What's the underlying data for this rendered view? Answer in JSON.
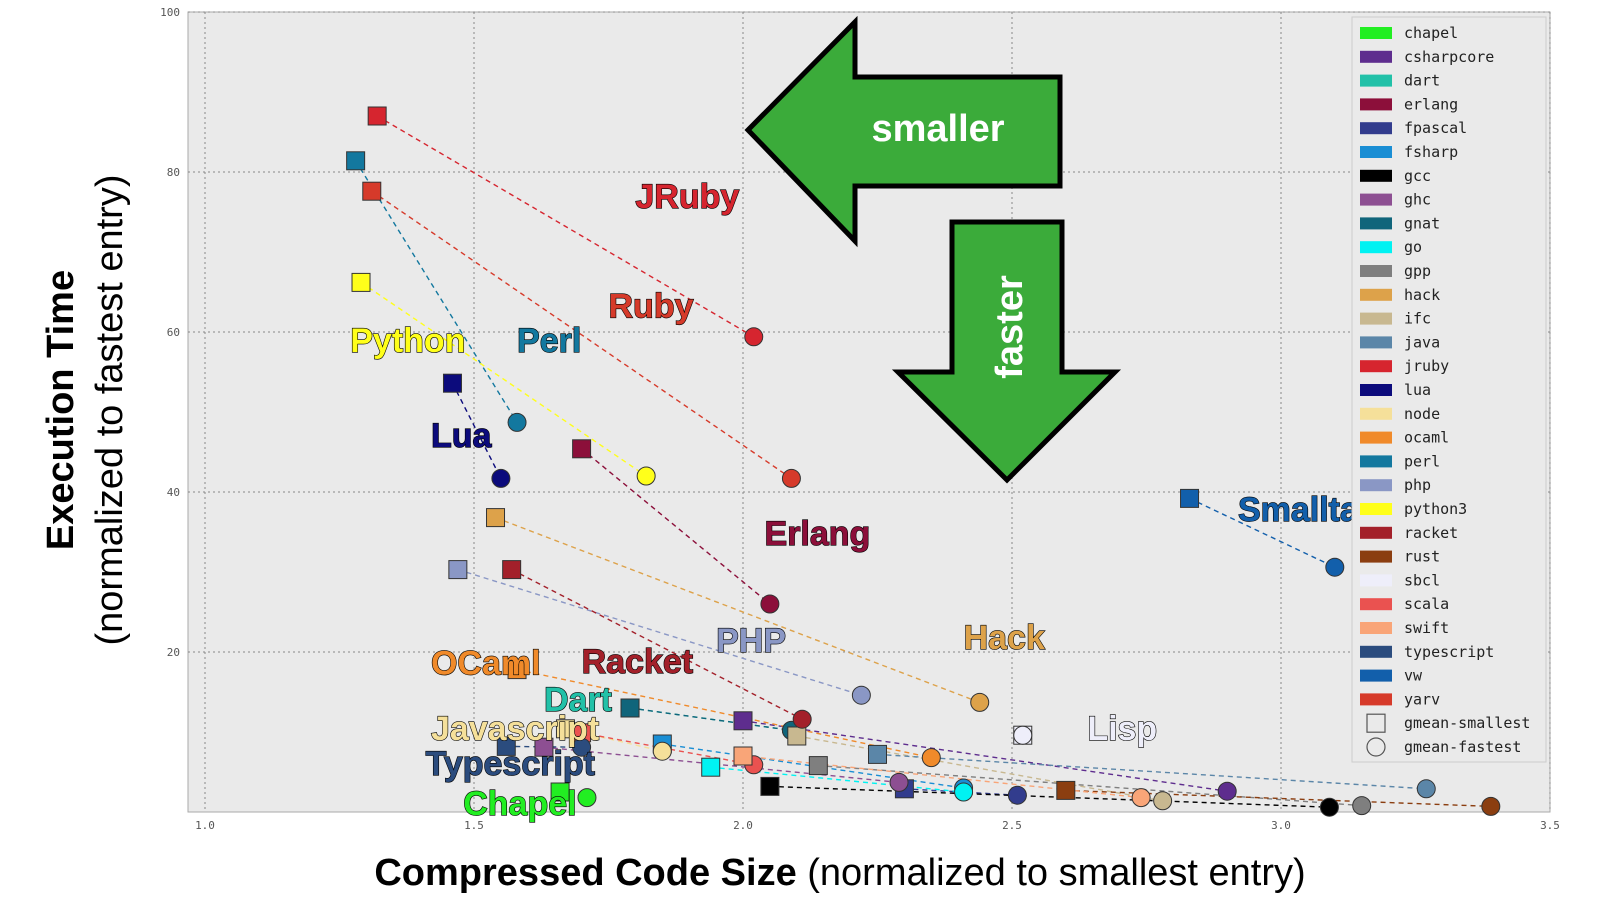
{
  "chart_data": {
    "type": "scatter",
    "title": "",
    "xlabel_bold": "Compressed Code Size",
    "xlabel_rest": " (normalized to smallest entry)",
    "ylabel_bold": "Execution Time",
    "ylabel_rest": "(normalized to fastest entry)",
    "xlim": [
      0.97,
      3.5
    ],
    "ylim": [
      0,
      100
    ],
    "xticks": [
      1.0,
      1.5,
      2.0,
      2.5,
      3.0,
      3.5
    ],
    "xtick_labels": [
      "1.0",
      "1.5",
      "2.0",
      "2.5",
      "3.0",
      "3.5"
    ],
    "yticks": [
      20,
      40,
      60,
      80,
      100
    ],
    "ytick_labels": [
      "20",
      "40",
      "60",
      "80",
      "100"
    ],
    "grid": true,
    "legend_position": "right",
    "series": [
      {
        "name": "chapel",
        "color": "#22ee22",
        "smallest": [
          1.66,
          2.5
        ],
        "fastest": [
          1.71,
          1.8
        ]
      },
      {
        "name": "csharpcore",
        "color": "#5e2d8e",
        "smallest": [
          2.0,
          11.4
        ],
        "fastest": [
          2.9,
          2.6
        ]
      },
      {
        "name": "dart",
        "color": "#22c1a8",
        "smallest": [
          1.79,
          13.0
        ],
        "fastest": [
          2.09,
          10.2
        ]
      },
      {
        "name": "erlang",
        "color": "#8c0f3a",
        "smallest": [
          1.7,
          45.4
        ],
        "fastest": [
          2.05,
          26.0
        ]
      },
      {
        "name": "fpascal",
        "color": "#323c8d",
        "smallest": [
          2.3,
          2.9
        ],
        "fastest": [
          2.51,
          2.1
        ]
      },
      {
        "name": "fsharp",
        "color": "#1a8ed4",
        "smallest": [
          1.85,
          8.5
        ],
        "fastest": [
          2.41,
          3.0
        ]
      },
      {
        "name": "gcc",
        "color": "#000000",
        "smallest": [
          2.05,
          3.2
        ],
        "fastest": [
          3.09,
          0.6
        ]
      },
      {
        "name": "ghc",
        "color": "#8d4f92",
        "smallest": [
          1.63,
          8.1
        ],
        "fastest": [
          2.29,
          3.7
        ]
      },
      {
        "name": "gnat",
        "color": "#10657b",
        "smallest": [
          1.79,
          13.0
        ],
        "fastest": [
          2.09,
          10.2
        ]
      },
      {
        "name": "go",
        "color": "#00f2f2",
        "smallest": [
          1.94,
          5.6
        ],
        "fastest": [
          2.41,
          2.5
        ]
      },
      {
        "name": "gpp",
        "color": "#7f7f7f",
        "smallest": [
          2.14,
          5.8
        ],
        "fastest": [
          3.15,
          0.8
        ]
      },
      {
        "name": "hack",
        "color": "#dda24a",
        "smallest": [
          1.54,
          36.8
        ],
        "fastest": [
          2.44,
          13.7
        ]
      },
      {
        "name": "ifc",
        "color": "#c8b890",
        "smallest": [
          2.1,
          9.5
        ],
        "fastest": [
          2.78,
          1.4
        ]
      },
      {
        "name": "java",
        "color": "#5b86a8",
        "smallest": [
          2.25,
          7.2
        ],
        "fastest": [
          3.27,
          2.9
        ]
      },
      {
        "name": "jruby",
        "color": "#d6252f",
        "smallest": [
          1.32,
          87.0
        ],
        "fastest": [
          2.02,
          59.4
        ]
      },
      {
        "name": "lua",
        "color": "#0c0b7c",
        "smallest": [
          1.46,
          53.6
        ],
        "fastest": [
          1.55,
          41.7
        ]
      },
      {
        "name": "node",
        "color": "#f5e09a",
        "smallest": [
          1.67,
          10.4
        ],
        "fastest": [
          1.85,
          7.6
        ]
      },
      {
        "name": "ocaml",
        "color": "#f08a2a",
        "smallest": [
          1.58,
          17.8
        ],
        "fastest": [
          2.35,
          6.8
        ]
      },
      {
        "name": "perl",
        "color": "#13789f",
        "smallest": [
          1.28,
          81.4
        ],
        "fastest": [
          1.58,
          48.7
        ]
      },
      {
        "name": "php",
        "color": "#8a97c5",
        "smallest": [
          1.47,
          30.3
        ],
        "fastest": [
          2.22,
          14.6
        ]
      },
      {
        "name": "python3",
        "color": "#ffff1a",
        "smallest": [
          1.29,
          66.2
        ],
        "fastest": [
          1.82,
          42.0
        ]
      },
      {
        "name": "racket",
        "color": "#a3202a",
        "smallest": [
          1.57,
          30.3
        ],
        "fastest": [
          2.11,
          11.6
        ]
      },
      {
        "name": "rust",
        "color": "#8b3e10",
        "smallest": [
          2.6,
          2.7
        ],
        "fastest": [
          3.39,
          0.7
        ]
      },
      {
        "name": "sbcl",
        "color": "#eeeefa",
        "smallest": [
          2.52,
          9.6
        ],
        "fastest": [
          2.52,
          9.6
        ]
      },
      {
        "name": "scala",
        "color": "#ea5250",
        "smallest": [
          1.7,
          9.9
        ],
        "fastest": [
          2.02,
          5.9
        ]
      },
      {
        "name": "swift",
        "color": "#f9a578",
        "smallest": [
          2.0,
          7.0
        ],
        "fastest": [
          2.74,
          1.8
        ]
      },
      {
        "name": "typescript",
        "color": "#2b4c7e",
        "smallest": [
          1.56,
          8.2
        ],
        "fastest": [
          1.7,
          8.1
        ]
      },
      {
        "name": "vw",
        "color": "#125fab",
        "smallest": [
          2.83,
          39.2
        ],
        "fastest": [
          3.1,
          30.6
        ]
      },
      {
        "name": "yarv",
        "color": "#d63a2a",
        "smallest": [
          1.31,
          77.6
        ],
        "fastest": [
          2.09,
          41.7
        ]
      }
    ],
    "legend_markers": [
      {
        "shape": "square",
        "label": "gmean-smallest"
      },
      {
        "shape": "circle",
        "label": "gmean-fastest"
      }
    ],
    "annotations": [
      {
        "text": "JRuby",
        "color": "#d6252f",
        "x": 1.8,
        "y": 75.5
      },
      {
        "text": "Ruby",
        "color": "#d63a2a",
        "x": 1.75,
        "y": 61.8
      },
      {
        "text": "Python",
        "color": "#ffff1a",
        "x": 1.27,
        "y": 57.5
      },
      {
        "text": "Perl",
        "color": "#13789f",
        "x": 1.58,
        "y": 57.5
      },
      {
        "text": "Lua",
        "color": "#0c0b7c",
        "x": 1.42,
        "y": 45.6
      },
      {
        "text": "Erlang",
        "color": "#8c0f3a",
        "x": 2.04,
        "y": 33.4
      },
      {
        "text": "Smalltalk",
        "color": "#125fab",
        "x": 2.92,
        "y": 36.4
      },
      {
        "text": "PHP",
        "color": "#8a97c5",
        "x": 1.95,
        "y": 20.0
      },
      {
        "text": "Hack",
        "color": "#dda24a",
        "x": 2.41,
        "y": 20.4
      },
      {
        "text": "OCaml",
        "color": "#f08a2a",
        "x": 1.42,
        "y": 17.2
      },
      {
        "text": "Racket",
        "color": "#a3202a",
        "x": 1.7,
        "y": 17.4
      },
      {
        "text": "Dart",
        "color": "#22c1a8",
        "x": 1.63,
        "y": 12.6
      },
      {
        "text": "Javascript",
        "color": "#f5e09a",
        "x": 1.42,
        "y": 9.0
      },
      {
        "text": "Lisp",
        "color": "#eeeefa",
        "x": 2.64,
        "y": 9.0
      },
      {
        "text": "Typescript",
        "color": "#2b4c7e",
        "x": 1.41,
        "y": 4.6
      },
      {
        "text": "Chapel",
        "color": "#22ee22",
        "x": 1.48,
        "y": -0.4
      }
    ],
    "arrow_left_label": "smaller",
    "arrow_down_label": "faster",
    "arrow_color": "#3bab3a"
  }
}
